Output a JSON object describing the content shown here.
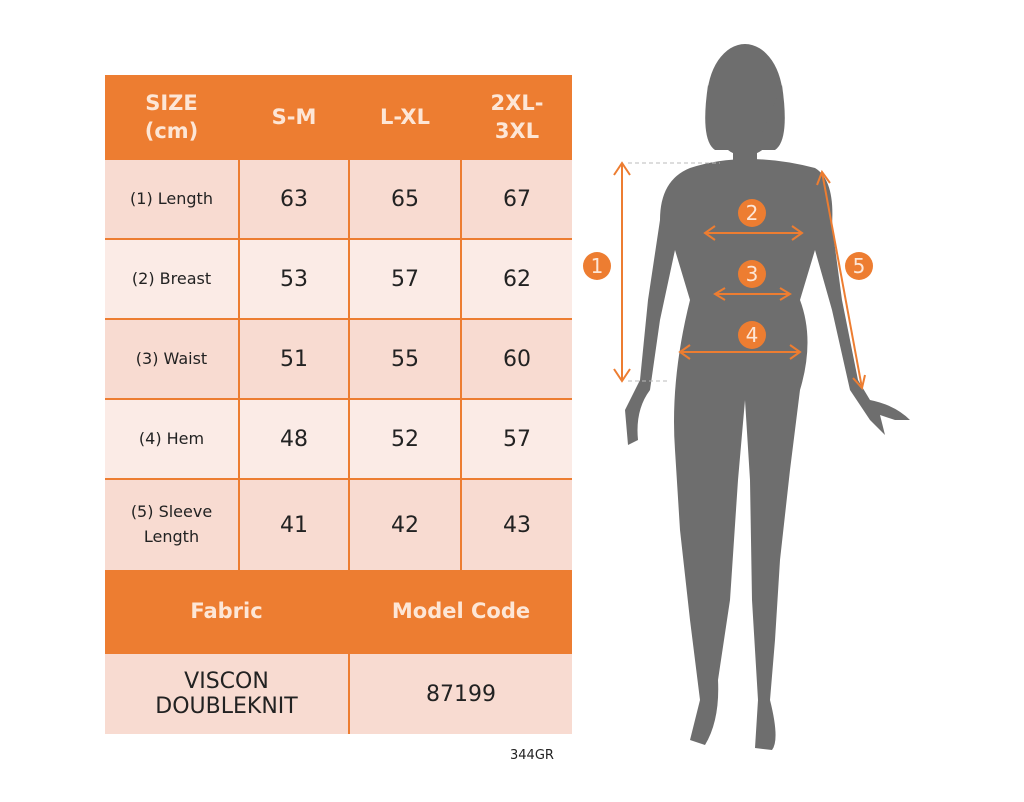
{
  "size_table": {
    "header": [
      "SIZE\n(cm)",
      "S-M",
      "L-XL",
      "2XL-\n3XL"
    ],
    "rows": [
      {
        "label": "(1) Length",
        "values": [
          "63",
          "65",
          "67"
        ]
      },
      {
        "label": "(2) Breast",
        "values": [
          "53",
          "57",
          "62"
        ]
      },
      {
        "label": "(3) Waist",
        "values": [
          "51",
          "55",
          "60"
        ]
      },
      {
        "label": "(4) Hem",
        "values": [
          "48",
          "52",
          "57"
        ]
      },
      {
        "label": "(5) Sleeve\nLength",
        "values": [
          "41",
          "42",
          "43"
        ]
      }
    ],
    "fabric_header": "Fabric",
    "model_code_header": "Model Code",
    "fabric_value": "VISCON\nDOUBLEKNIT",
    "model_code_value": "87199"
  },
  "product_code": "344GR",
  "diagram": {
    "markers": [
      "1",
      "2",
      "3",
      "4",
      "5"
    ],
    "icon": "female-silhouette-icon"
  },
  "colors": {
    "accent": "#ed7d31",
    "row_dark": "#f8dbd1",
    "row_light": "#fbebe6",
    "silhouette": "#6e6e6e"
  }
}
